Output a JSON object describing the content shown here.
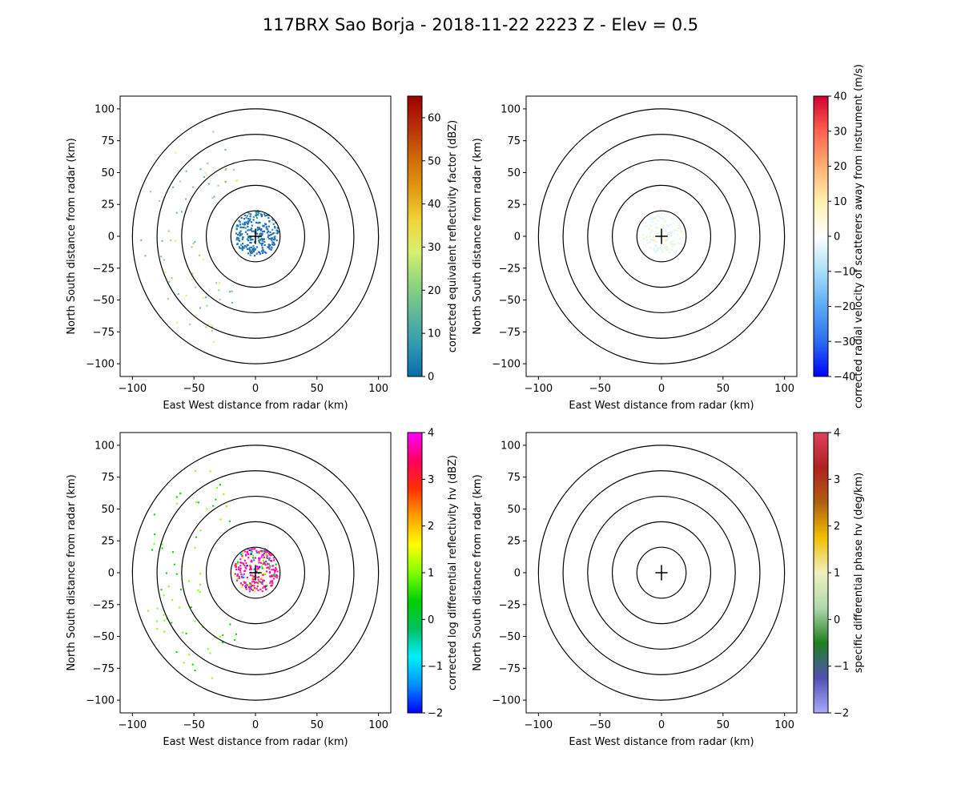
{
  "title": "117BRX Sao Borja - 2018-11-22 2223 Z -  Elev = 0.5",
  "chart_data": [
    {
      "type": "heatmap",
      "xlabel": "East West distance from radar (km)",
      "ylabel": "North South distance from radar (km)",
      "xlim": [
        -110,
        110
      ],
      "ylim": [
        -110,
        110
      ],
      "xticks": [
        -100,
        -50,
        0,
        50,
        100
      ],
      "yticks": [
        -100,
        -75,
        -50,
        -25,
        0,
        25,
        50,
        75,
        100
      ],
      "range_rings_km": [
        20,
        40,
        60,
        80,
        100
      ],
      "colorbar": {
        "label": "corrected equivalent reflectivity factor (dBZ)",
        "range": [
          0,
          65
        ],
        "ticks": [
          0,
          10,
          20,
          30,
          40,
          50,
          60
        ],
        "colors": [
          "#0a6aae",
          "#2f9ab0",
          "#5fb89a",
          "#8fd67a",
          "#d8f070",
          "#f2d43a",
          "#e39a12",
          "#cf6a0a",
          "#b8300a",
          "#9c0000"
        ]
      },
      "echo_color": "#1f6fba"
    },
    {
      "type": "heatmap",
      "xlabel": "East West distance from radar (km)",
      "ylabel": "North South distance from radar (km)",
      "xlim": [
        -110,
        110
      ],
      "ylim": [
        -110,
        110
      ],
      "xticks": [
        -100,
        -50,
        0,
        50,
        100
      ],
      "yticks": [
        -100,
        -75,
        -50,
        -25,
        0,
        25,
        50,
        75,
        100
      ],
      "range_rings_km": [
        20,
        40,
        60,
        80,
        100
      ],
      "colorbar": {
        "label": "corrected radial velocity of scatterers away from instrument (m/s)",
        "range": [
          -40,
          40
        ],
        "ticks": [
          -40,
          -30,
          -20,
          -10,
          0,
          10,
          20,
          30,
          40
        ],
        "colors": [
          "#0000ff",
          "#2d6cf0",
          "#5aaaf5",
          "#a9dff5",
          "#ffffff",
          "#fff0b0",
          "#ffb070",
          "#ff6050",
          "#d00030"
        ]
      },
      "echo_color": "#dff6f6"
    },
    {
      "type": "heatmap",
      "xlabel": "East West distance from radar (km)",
      "ylabel": "North South distance from radar (km)",
      "xlim": [
        -110,
        110
      ],
      "ylim": [
        -110,
        110
      ],
      "xticks": [
        -100,
        -50,
        0,
        50,
        100
      ],
      "yticks": [
        -100,
        -75,
        -50,
        -25,
        0,
        25,
        50,
        75,
        100
      ],
      "range_rings_km": [
        20,
        40,
        60,
        80,
        100
      ],
      "colorbar": {
        "label": "corrected log differential reflectivity hv (dBZ)",
        "range": [
          -2,
          4
        ],
        "ticks": [
          -2,
          -1,
          0,
          1,
          2,
          3,
          4
        ],
        "colors": [
          "#0000ff",
          "#0090ff",
          "#00f0ff",
          "#00c060",
          "#00d000",
          "#80ff00",
          "#ffff00",
          "#ffa000",
          "#ff3000",
          "#ff0060",
          "#ff00ff"
        ]
      },
      "echo_color": "#ff1aa0"
    },
    {
      "type": "heatmap",
      "xlabel": "East West distance from radar (km)",
      "ylabel": "North South distance from radar (km)",
      "xlim": [
        -110,
        110
      ],
      "ylim": [
        -110,
        110
      ],
      "xticks": [
        -100,
        -50,
        0,
        50,
        100
      ],
      "yticks": [
        -100,
        -75,
        -50,
        -25,
        0,
        25,
        50,
        75,
        100
      ],
      "range_rings_km": [
        20,
        40,
        60,
        80,
        100
      ],
      "colorbar": {
        "label": "specific differential phase hv (deg/km)",
        "range": [
          -2,
          4
        ],
        "ticks": [
          -2,
          -1,
          0,
          1,
          2,
          3,
          4
        ],
        "colors": [
          "#aaaaff",
          "#5050b0",
          "#208020",
          "#b0d8b0",
          "#f0f0c0",
          "#f0c000",
          "#b06010",
          "#b02020",
          "#e04060"
        ]
      },
      "echo_color": null
    }
  ]
}
